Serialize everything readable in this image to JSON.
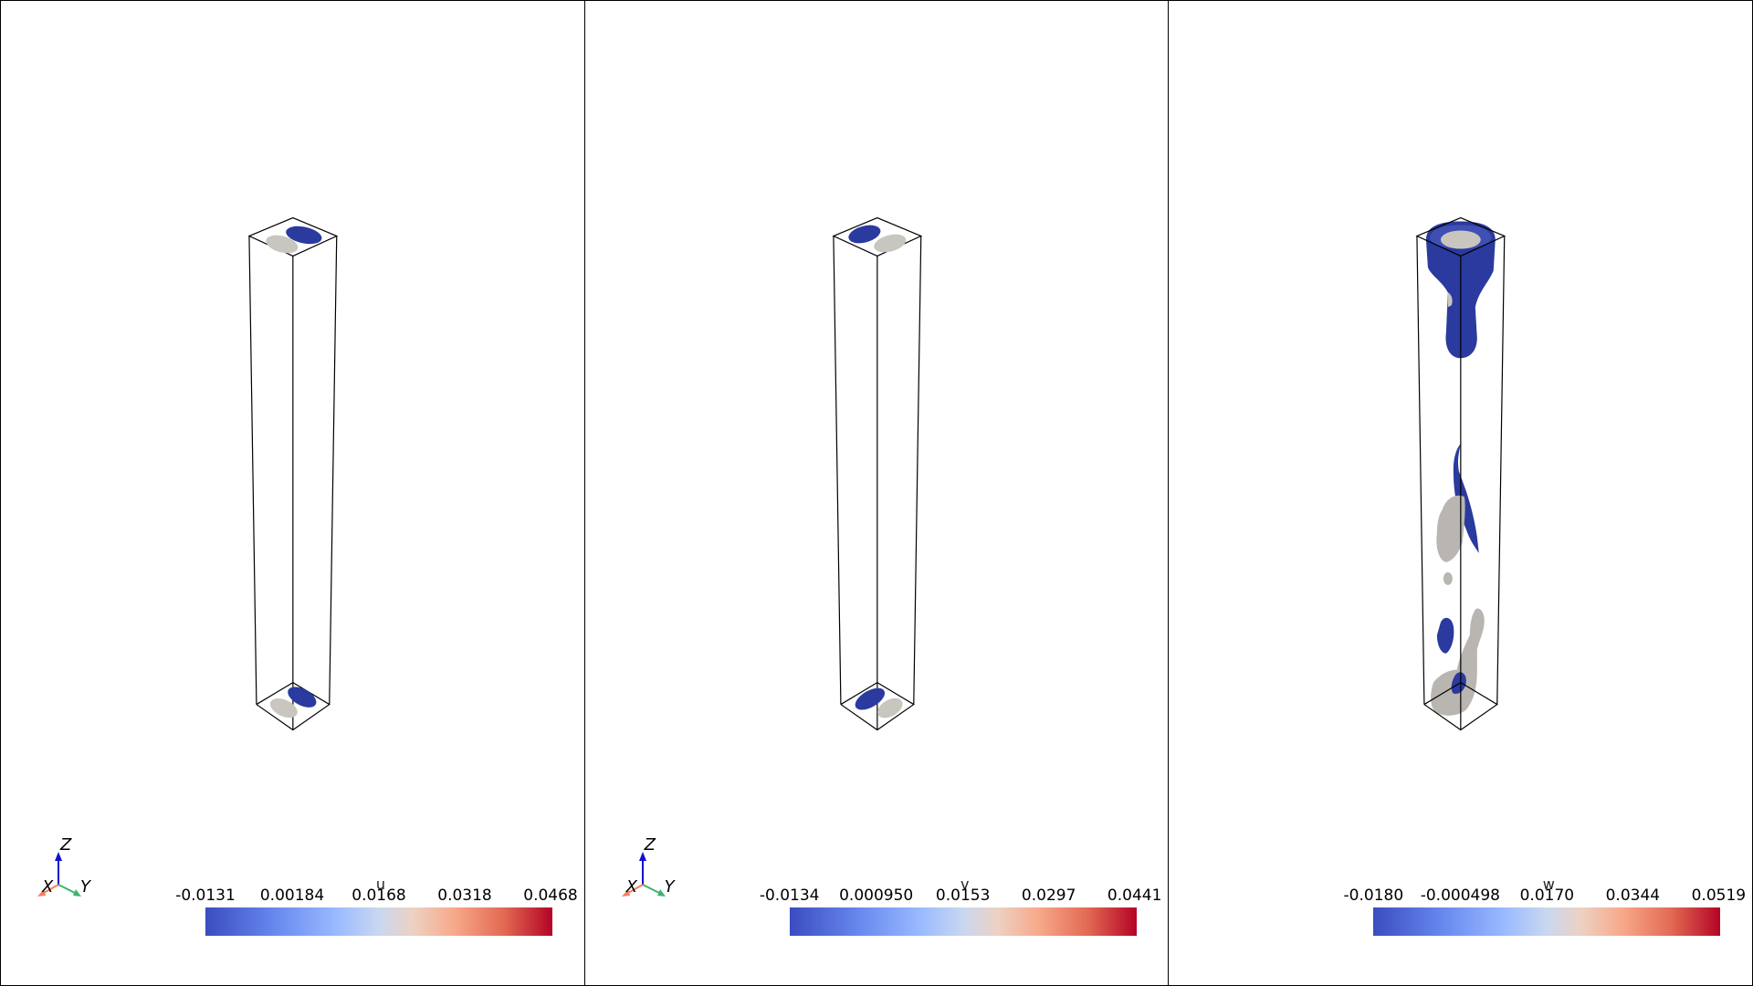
{
  "panels": [
    {
      "field": "u",
      "ticks": [
        "-0.0131",
        "0.00184",
        "0.0168",
        "0.0318",
        "0.0468"
      ],
      "axes": {
        "x": "X",
        "y": "Y",
        "z": "Z"
      }
    },
    {
      "field": "v",
      "ticks": [
        "-0.0134",
        "0.000950",
        "0.0153",
        "0.0297",
        "0.0441"
      ],
      "axes": {
        "x": "X",
        "y": "Y",
        "z": "Z"
      }
    },
    {
      "field": "w",
      "ticks": [
        "-0.0180",
        "-0.000498",
        "0.0170",
        "0.0344",
        "0.0519"
      ],
      "axes": {}
    }
  ],
  "colors": {
    "iso_negative": "#2a3a9e",
    "iso_positive": "#c9c6bf",
    "frame": "#000000",
    "axis_x": "#f08060",
    "axis_y": "#3cb371",
    "axis_z": "#1010d0"
  },
  "colormap": "coolwarm"
}
